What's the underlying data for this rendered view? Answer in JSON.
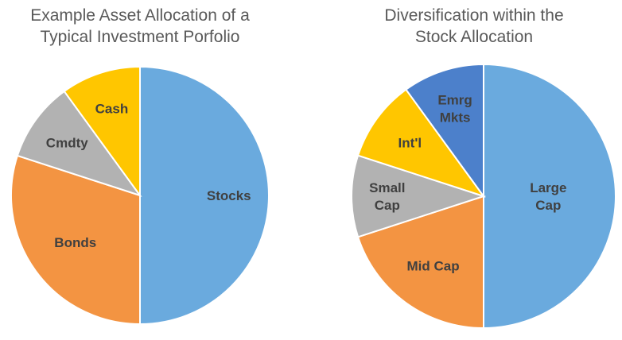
{
  "chart_data": [
    {
      "type": "pie",
      "title_lines": [
        "Example Asset Allocation of a",
        "Typical Investment Porfolio"
      ],
      "slices": [
        {
          "label": [
            "Stocks"
          ],
          "value": 50,
          "color": "#6AAADE"
        },
        {
          "label": [
            "Bonds"
          ],
          "value": 30,
          "color": "#F39442"
        },
        {
          "label": [
            "Cmdty"
          ],
          "value": 10,
          "color": "#B2B2B2"
        },
        {
          "label": [
            "Cash"
          ],
          "value": 10,
          "color": "#FFC600"
        }
      ]
    },
    {
      "type": "pie",
      "title_lines": [
        "Diversification within the",
        "Stock Allocation"
      ],
      "slices": [
        {
          "label": [
            "Large",
            "Cap"
          ],
          "value": 50,
          "color": "#6AAADE"
        },
        {
          "label": [
            "Mid Cap"
          ],
          "value": 20,
          "color": "#F39442"
        },
        {
          "label": [
            "Small",
            "Cap"
          ],
          "value": 10,
          "color": "#B2B2B2"
        },
        {
          "label": [
            "Int'l"
          ],
          "value": 10,
          "color": "#FFC600"
        },
        {
          "label": [
            "Emrg",
            "Mkts"
          ],
          "value": 10,
          "color": "#4C80CB"
        }
      ]
    }
  ]
}
